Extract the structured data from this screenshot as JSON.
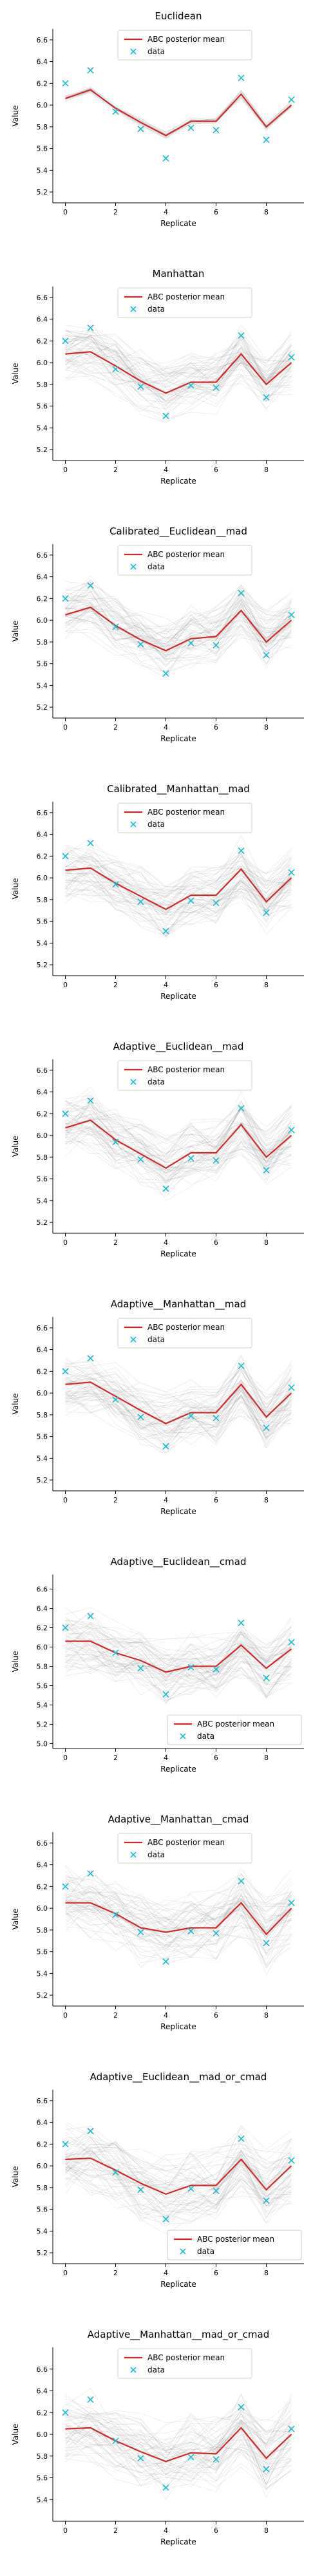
{
  "colors": {
    "posterior": "#d62728",
    "data": "#17becf",
    "samples": "#808080"
  },
  "chart_data": [
    {
      "type": "line",
      "title": "Euclidean",
      "xlabel": "Replicate",
      "ylabel": "Value",
      "x": [
        0,
        1,
        2,
        3,
        4,
        5,
        6,
        7,
        8,
        9
      ],
      "xlim": [
        -0.5,
        9.5
      ],
      "ylim": [
        5.1,
        6.7
      ],
      "xticks": [
        0,
        2,
        4,
        6,
        8
      ],
      "yticks": [
        5.2,
        5.4,
        5.6,
        5.8,
        6.0,
        6.2,
        6.4,
        6.6
      ],
      "yticklabels": [
        "5.2",
        "5.4",
        "5.6",
        "5.8",
        "6.0",
        "6.2",
        "6.4",
        "6.6"
      ],
      "legend_position": "top-center",
      "sample_band_halfwidth": 0.05,
      "series": [
        {
          "name": "ABC posterior mean",
          "kind": "line",
          "values": [
            6.06,
            6.14,
            5.97,
            5.84,
            5.72,
            5.85,
            5.85,
            6.1,
            5.8,
            6.0
          ]
        },
        {
          "name": "data",
          "kind": "scatter",
          "values": [
            6.2,
            6.32,
            5.94,
            5.78,
            5.51,
            5.79,
            5.77,
            6.25,
            5.68,
            6.05
          ]
        }
      ]
    },
    {
      "type": "line",
      "title": "Manhattan",
      "xlabel": "Replicate",
      "ylabel": "Value",
      "x": [
        0,
        1,
        2,
        3,
        4,
        5,
        6,
        7,
        8,
        9
      ],
      "xlim": [
        -0.5,
        9.5
      ],
      "ylim": [
        5.1,
        6.7
      ],
      "xticks": [
        0,
        2,
        4,
        6,
        8
      ],
      "yticks": [
        5.2,
        5.4,
        5.6,
        5.8,
        6.0,
        6.2,
        6.4,
        6.6
      ],
      "yticklabels": [
        "5.2",
        "5.4",
        "5.6",
        "5.8",
        "6.0",
        "6.2",
        "6.4",
        "6.6"
      ],
      "legend_position": "top-center",
      "sample_band_halfwidth": 0.3,
      "series": [
        {
          "name": "ABC posterior mean",
          "kind": "line",
          "values": [
            6.08,
            6.1,
            5.97,
            5.83,
            5.72,
            5.82,
            5.82,
            6.08,
            5.8,
            6.0
          ]
        },
        {
          "name": "data",
          "kind": "scatter",
          "values": [
            6.2,
            6.32,
            5.94,
            5.78,
            5.51,
            5.79,
            5.77,
            6.25,
            5.68,
            6.05
          ]
        }
      ]
    },
    {
      "type": "line",
      "title": "Calibrated__Euclidean__mad",
      "xlabel": "Replicate",
      "ylabel": "Value",
      "x": [
        0,
        1,
        2,
        3,
        4,
        5,
        6,
        7,
        8,
        9
      ],
      "xlim": [
        -0.5,
        9.5
      ],
      "ylim": [
        5.1,
        6.7
      ],
      "xticks": [
        0,
        2,
        4,
        6,
        8
      ],
      "yticks": [
        5.2,
        5.4,
        5.6,
        5.8,
        6.0,
        6.2,
        6.4,
        6.6
      ],
      "yticklabels": [
        "5.2",
        "5.4",
        "5.6",
        "5.8",
        "6.0",
        "6.2",
        "6.4",
        "6.6"
      ],
      "legend_position": "top-center",
      "sample_band_halfwidth": 0.3,
      "series": [
        {
          "name": "ABC posterior mean",
          "kind": "line",
          "values": [
            6.05,
            6.12,
            5.95,
            5.82,
            5.72,
            5.83,
            5.85,
            6.09,
            5.8,
            6.0
          ]
        },
        {
          "name": "data",
          "kind": "scatter",
          "values": [
            6.2,
            6.32,
            5.94,
            5.78,
            5.51,
            5.79,
            5.77,
            6.25,
            5.68,
            6.05
          ]
        }
      ]
    },
    {
      "type": "line",
      "title": "Calibrated__Manhattan__mad",
      "xlabel": "Replicate",
      "ylabel": "Value",
      "x": [
        0,
        1,
        2,
        3,
        4,
        5,
        6,
        7,
        8,
        9
      ],
      "xlim": [
        -0.5,
        9.5
      ],
      "ylim": [
        5.1,
        6.7
      ],
      "xticks": [
        0,
        2,
        4,
        6,
        8
      ],
      "yticks": [
        5.2,
        5.4,
        5.6,
        5.8,
        6.0,
        6.2,
        6.4,
        6.6
      ],
      "yticklabels": [
        "5.2",
        "5.4",
        "5.6",
        "5.8",
        "6.0",
        "6.2",
        "6.4",
        "6.6"
      ],
      "legend_position": "top-center",
      "sample_band_halfwidth": 0.3,
      "series": [
        {
          "name": "ABC posterior mean",
          "kind": "line",
          "values": [
            6.07,
            6.09,
            5.95,
            5.83,
            5.71,
            5.84,
            5.84,
            6.08,
            5.78,
            6.0
          ]
        },
        {
          "name": "data",
          "kind": "scatter",
          "values": [
            6.2,
            6.32,
            5.94,
            5.78,
            5.51,
            5.79,
            5.77,
            6.25,
            5.68,
            6.05
          ]
        }
      ]
    },
    {
      "type": "line",
      "title": "Adaptive__Euclidean__mad",
      "xlabel": "Replicate",
      "ylabel": "Value",
      "x": [
        0,
        1,
        2,
        3,
        4,
        5,
        6,
        7,
        8,
        9
      ],
      "xlim": [
        -0.5,
        9.5
      ],
      "ylim": [
        5.1,
        6.7
      ],
      "xticks": [
        0,
        2,
        4,
        6,
        8
      ],
      "yticks": [
        5.2,
        5.4,
        5.6,
        5.8,
        6.0,
        6.2,
        6.4,
        6.6
      ],
      "yticklabels": [
        "5.2",
        "5.4",
        "5.6",
        "5.8",
        "6.0",
        "6.2",
        "6.4",
        "6.6"
      ],
      "legend_position": "top-center",
      "sample_band_halfwidth": 0.3,
      "series": [
        {
          "name": "ABC posterior mean",
          "kind": "line",
          "values": [
            6.07,
            6.14,
            5.96,
            5.83,
            5.7,
            5.84,
            5.84,
            6.1,
            5.8,
            6.0
          ]
        },
        {
          "name": "data",
          "kind": "scatter",
          "values": [
            6.2,
            6.32,
            5.94,
            5.78,
            5.51,
            5.79,
            5.77,
            6.25,
            5.68,
            6.05
          ]
        }
      ]
    },
    {
      "type": "line",
      "title": "Adaptive__Manhattan__mad",
      "xlabel": "Replicate",
      "ylabel": "Value",
      "x": [
        0,
        1,
        2,
        3,
        4,
        5,
        6,
        7,
        8,
        9
      ],
      "xlim": [
        -0.5,
        9.5
      ],
      "ylim": [
        5.1,
        6.7
      ],
      "xticks": [
        0,
        2,
        4,
        6,
        8
      ],
      "yticks": [
        5.2,
        5.4,
        5.6,
        5.8,
        6.0,
        6.2,
        6.4,
        6.6
      ],
      "yticklabels": [
        "5.2",
        "5.4",
        "5.6",
        "5.8",
        "6.0",
        "6.2",
        "6.4",
        "6.6"
      ],
      "legend_position": "top-center",
      "sample_band_halfwidth": 0.3,
      "series": [
        {
          "name": "ABC posterior mean",
          "kind": "line",
          "values": [
            6.08,
            6.1,
            5.97,
            5.84,
            5.72,
            5.82,
            5.82,
            6.08,
            5.78,
            6.0
          ]
        },
        {
          "name": "data",
          "kind": "scatter",
          "values": [
            6.2,
            6.32,
            5.94,
            5.78,
            5.51,
            5.79,
            5.77,
            6.25,
            5.68,
            6.05
          ]
        }
      ]
    },
    {
      "type": "line",
      "title": "Adaptive__Euclidean__cmad",
      "xlabel": "Replicate",
      "ylabel": "Value",
      "x": [
        0,
        1,
        2,
        3,
        4,
        5,
        6,
        7,
        8,
        9
      ],
      "xlim": [
        -0.5,
        9.5
      ],
      "ylim": [
        4.95,
        6.75
      ],
      "xticks": [
        0,
        2,
        4,
        6,
        8
      ],
      "yticks": [
        5.0,
        5.2,
        5.4,
        5.6,
        5.8,
        6.0,
        6.2,
        6.4,
        6.6
      ],
      "yticklabels": [
        "5.0",
        "5.2",
        "5.4",
        "5.6",
        "5.8",
        "6.0",
        "6.2",
        "6.4",
        "6.6"
      ],
      "legend_position": "bottom-right",
      "sample_band_halfwidth": 0.35,
      "series": [
        {
          "name": "ABC posterior mean",
          "kind": "line",
          "values": [
            6.06,
            6.06,
            5.94,
            5.86,
            5.74,
            5.8,
            5.8,
            6.02,
            5.78,
            5.98
          ]
        },
        {
          "name": "data",
          "kind": "scatter",
          "values": [
            6.2,
            6.32,
            5.94,
            5.78,
            5.51,
            5.79,
            5.77,
            6.25,
            5.68,
            6.05
          ]
        }
      ]
    },
    {
      "type": "line",
      "title": "Adaptive__Manhattan__cmad",
      "xlabel": "Replicate",
      "ylabel": "Value",
      "x": [
        0,
        1,
        2,
        3,
        4,
        5,
        6,
        7,
        8,
        9
      ],
      "xlim": [
        -0.5,
        9.5
      ],
      "ylim": [
        5.1,
        6.7
      ],
      "xticks": [
        0,
        2,
        4,
        6,
        8
      ],
      "yticks": [
        5.2,
        5.4,
        5.6,
        5.8,
        6.0,
        6.2,
        6.4,
        6.6
      ],
      "yticklabels": [
        "5.2",
        "5.4",
        "5.6",
        "5.8",
        "6.0",
        "6.2",
        "6.4",
        "6.6"
      ],
      "legend_position": "top-center",
      "sample_band_halfwidth": 0.35,
      "series": [
        {
          "name": "ABC posterior mean",
          "kind": "line",
          "values": [
            6.05,
            6.05,
            5.95,
            5.82,
            5.78,
            5.82,
            5.82,
            6.05,
            5.76,
            6.0
          ]
        },
        {
          "name": "data",
          "kind": "scatter",
          "values": [
            6.2,
            6.32,
            5.94,
            5.78,
            5.51,
            5.79,
            5.77,
            6.25,
            5.68,
            6.05
          ]
        }
      ]
    },
    {
      "type": "line",
      "title": "Adaptive__Euclidean__mad_or_cmad",
      "xlabel": "Replicate",
      "ylabel": "Value",
      "x": [
        0,
        1,
        2,
        3,
        4,
        5,
        6,
        7,
        8,
        9
      ],
      "xlim": [
        -0.5,
        9.5
      ],
      "ylim": [
        5.1,
        6.7
      ],
      "xticks": [
        0,
        2,
        4,
        6,
        8
      ],
      "yticks": [
        5.2,
        5.4,
        5.6,
        5.8,
        6.0,
        6.2,
        6.4,
        6.6
      ],
      "yticklabels": [
        "5.2",
        "5.4",
        "5.6",
        "5.8",
        "6.0",
        "6.2",
        "6.4",
        "6.6"
      ],
      "legend_position": "bottom-right",
      "sample_band_halfwidth": 0.35,
      "series": [
        {
          "name": "ABC posterior mean",
          "kind": "line",
          "values": [
            6.06,
            6.07,
            5.96,
            5.84,
            5.74,
            5.82,
            5.82,
            6.06,
            5.78,
            6.0
          ]
        },
        {
          "name": "data",
          "kind": "scatter",
          "values": [
            6.2,
            6.32,
            5.94,
            5.78,
            5.51,
            5.79,
            5.77,
            6.25,
            5.68,
            6.05
          ]
        }
      ]
    },
    {
      "type": "line",
      "title": "Adaptive__Manhattan__mad_or_cmad",
      "xlabel": "Replicate",
      "ylabel": "Value",
      "x": [
        0,
        1,
        2,
        3,
        4,
        5,
        6,
        7,
        8,
        9
      ],
      "xlim": [
        -0.5,
        9.5
      ],
      "ylim": [
        5.2,
        6.8
      ],
      "xticks": [
        0,
        2,
        4,
        6,
        8
      ],
      "yticks": [
        5.4,
        5.6,
        5.8,
        6.0,
        6.2,
        6.4,
        6.6
      ],
      "yticklabels": [
        "5.4",
        "5.6",
        "5.8",
        "6.0",
        "6.2",
        "6.4",
        "6.6"
      ],
      "legend_position": "top-center",
      "sample_band_halfwidth": 0.35,
      "series": [
        {
          "name": "ABC posterior mean",
          "kind": "line",
          "values": [
            6.05,
            6.06,
            5.94,
            5.84,
            5.75,
            5.83,
            5.82,
            6.06,
            5.78,
            6.0
          ]
        },
        {
          "name": "data",
          "kind": "scatter",
          "values": [
            6.2,
            6.32,
            5.94,
            5.78,
            5.51,
            5.79,
            5.77,
            6.25,
            5.68,
            6.05
          ]
        }
      ]
    }
  ]
}
